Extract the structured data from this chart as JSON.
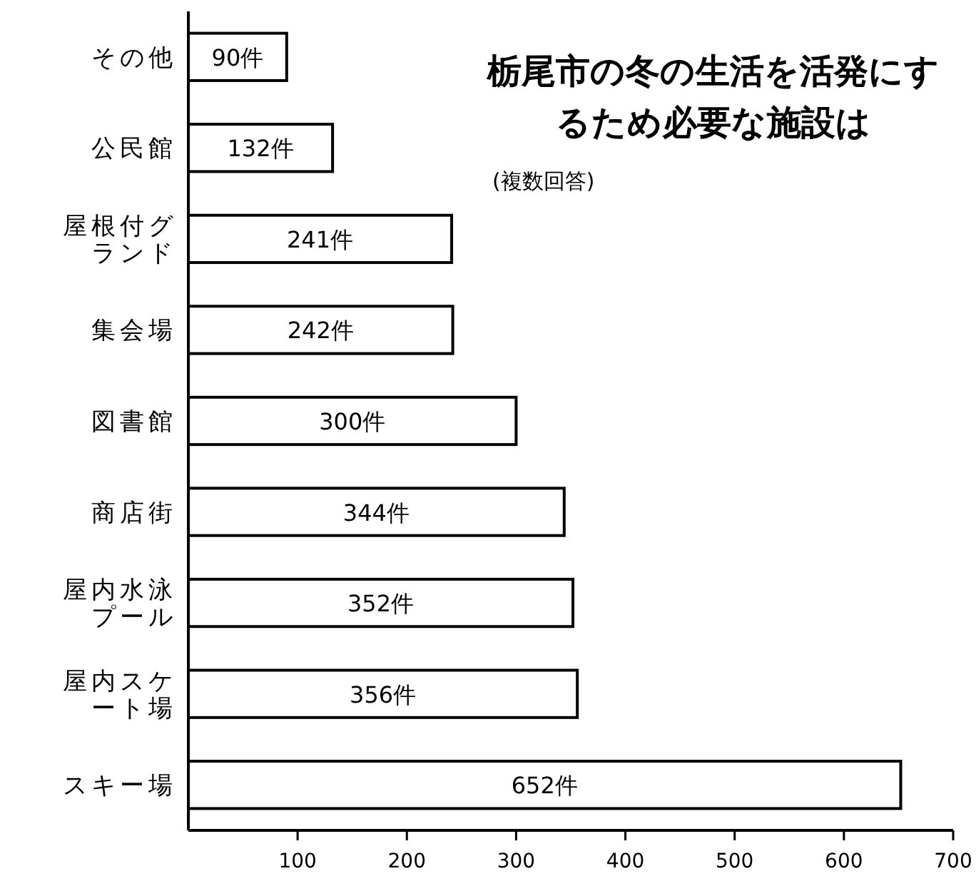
{
  "chart_data": {
    "type": "bar",
    "orientation": "horizontal",
    "title": "栃尾市の冬の生活を活発にするため必要な施設は",
    "subtitle": "(複数回答)",
    "categories": [
      "その他",
      "公民館",
      "屋根付グランド",
      "集会場",
      "図書館",
      "商店街",
      "屋内水泳プール",
      "屋内スケート場",
      "スキー場"
    ],
    "values": [
      90,
      132,
      241,
      242,
      300,
      344,
      352,
      356,
      652
    ],
    "value_labels": [
      "90件",
      "132件",
      "241件",
      "242件",
      "300件",
      "344件",
      "352件",
      "356件",
      "652件"
    ],
    "color": "#ffffff",
    "xlim": [
      0,
      700
    ],
    "xticks": [
      100,
      200,
      300,
      400,
      500,
      600,
      700
    ],
    "grid": false
  }
}
